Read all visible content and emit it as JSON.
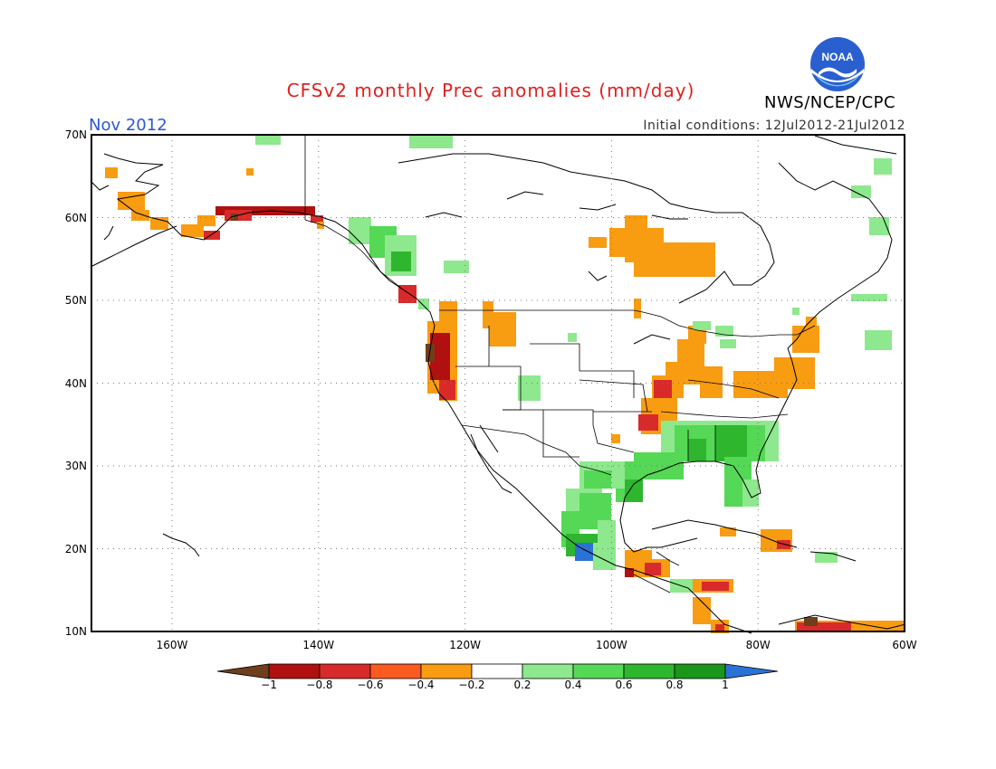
{
  "header": {
    "title": "CFSv2 monthly Prec anomalies (mm/day)",
    "title_color": "#e02020",
    "valid_month": "Nov 2012",
    "valid_month_color": "#2a57d6",
    "initial_conditions": "Initial conditions: 12Jul2012-21Jul2012",
    "agency": "NWS/NCEP/CPC",
    "logo_text": "NOAA"
  },
  "map": {
    "projection": "latlon",
    "lon_range": [
      -171,
      -60
    ],
    "lat_range": [
      10,
      70
    ],
    "lat_labels": [
      "70N",
      "60N",
      "50N",
      "40N",
      "30N",
      "20N",
      "10N"
    ],
    "lon_labels": [
      "160W",
      "140W",
      "120W",
      "100W",
      "80W",
      "60W"
    ],
    "grid": true,
    "grid_lats": [
      60,
      50,
      40,
      30,
      20
    ],
    "grid_lons": [
      -160,
      -140,
      -120,
      -100,
      -80
    ]
  },
  "colorbar": {
    "labels": [
      "-1",
      "-0.8",
      "-0.6",
      "-0.4",
      "-0.2",
      "0.2",
      "0.4",
      "0.6",
      "0.8",
      "1"
    ],
    "colors": [
      "#6e3e1e",
      "#b01010",
      "#d82a2a",
      "#fb5a20",
      "#f89c12",
      "#ffffff",
      "#8ee88e",
      "#55d855",
      "#2eb62e",
      "#1a961a",
      "#2a72d6"
    ]
  },
  "anomaly_regions": [
    {
      "region": "Alaska south coast",
      "level": "-0.4 to -0.6",
      "color": "#f89c12"
    },
    {
      "region": "Gulf of Alaska coast",
      "level": "-0.8",
      "color": "#b01010"
    },
    {
      "region": "Pacific Northwest coast",
      "level": "-0.8 to -1",
      "color": "#b01010"
    },
    {
      "region": "British Columbia coast",
      "level": "0.4 to 0.6",
      "color": "#55d855"
    },
    {
      "region": "Hudson Bay west",
      "level": "-0.2 to -0.4",
      "color": "#f89c12"
    },
    {
      "region": "Mississippi / Ohio valleys",
      "level": "-0.2 to -0.6",
      "color": "#f89c12"
    },
    {
      "region": "Gulf Coast / Southeast US",
      "level": "0.2 to 0.8",
      "color": "#55d855"
    },
    {
      "region": "Western Mexico",
      "level": "0.4 to 1",
      "color": "#55d855"
    },
    {
      "region": "Caribbean / Central America",
      "level": "-0.2 to -0.8",
      "color": "#f89c12"
    }
  ]
}
